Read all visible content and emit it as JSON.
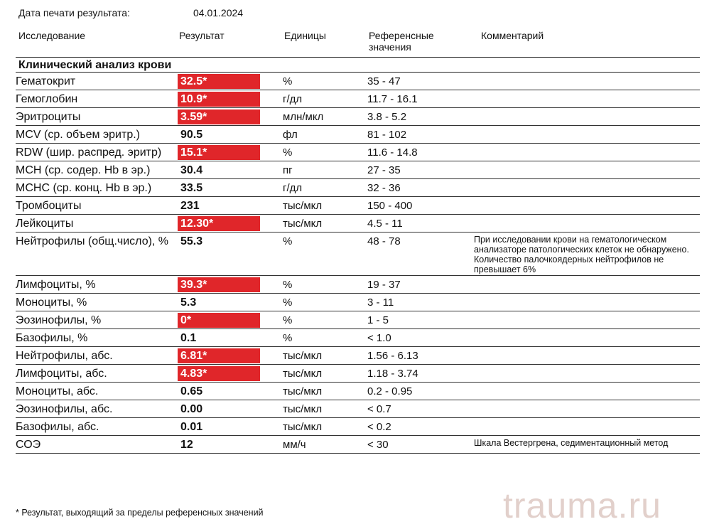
{
  "header": {
    "print_date_label": "Дата печати результата:",
    "print_date": "04.01.2024"
  },
  "columns": [
    "Исследование",
    "Результат",
    "Единицы",
    "Референсные значения",
    "Комментарий"
  ],
  "section_title": "Клинический анализ крови",
  "rows": [
    {
      "name": "Гематокрит",
      "result": "32.5*",
      "flagged": true,
      "units": "%",
      "reference": "35 - 47"
    },
    {
      "name": "Гемоглобин",
      "result": "10.9*",
      "flagged": true,
      "units": "г/дл",
      "reference": "11.7 - 16.1"
    },
    {
      "name": "Эритроциты",
      "result": "3.59*",
      "flagged": true,
      "units": "млн/мкл",
      "reference": "3.8 - 5.2"
    },
    {
      "name": "MCV (ср. объем эритр.)",
      "result": "90.5",
      "flagged": false,
      "units": "фл",
      "reference": "81 - 102"
    },
    {
      "name": "RDW (шир. распред. эритр)",
      "result": "15.1*",
      "flagged": true,
      "units": "%",
      "reference": "11.6 - 14.8"
    },
    {
      "name": "MCH (ср. содер. Hb в эр.)",
      "result": "30.4",
      "flagged": false,
      "units": "пг",
      "reference": "27 - 35"
    },
    {
      "name": "MCHC (ср. конц. Hb в эр.)",
      "result": "33.5",
      "flagged": false,
      "units": "г/дл",
      "reference": "32 - 36"
    },
    {
      "name": "Тромбоциты",
      "result": "231",
      "flagged": false,
      "units": "тыс/мкл",
      "reference": "150 - 400"
    },
    {
      "name": "Лейкоциты",
      "result": "12.30*",
      "flagged": true,
      "units": "тыс/мкл",
      "reference": "4.5 - 11"
    },
    {
      "name": "Нейтрофилы (общ.число), %",
      "result": "55.3",
      "flagged": false,
      "units": "%",
      "reference": "48 - 78",
      "comment": "При исследовании крови на гематологическом анализаторе патологических клеток не обнаружено. Количество палочкоядерных нейтрофилов не превышает 6%"
    },
    {
      "name": "Лимфоциты, %",
      "result": "39.3*",
      "flagged": true,
      "units": "%",
      "reference": "19 - 37"
    },
    {
      "name": "Моноциты, %",
      "result": "5.3",
      "flagged": false,
      "units": "%",
      "reference": "3 - 11"
    },
    {
      "name": "Эозинофилы, %",
      "result": "0*",
      "flagged": true,
      "units": "%",
      "reference": "1 - 5"
    },
    {
      "name": "Базофилы, %",
      "result": "0.1",
      "flagged": false,
      "units": "%",
      "reference": "< 1.0"
    },
    {
      "name": "Нейтрофилы, абс.",
      "result": "6.81*",
      "flagged": true,
      "units": "тыс/мкл",
      "reference": "1.56 - 6.13"
    },
    {
      "name": "Лимфоциты, абс.",
      "result": "4.83*",
      "flagged": true,
      "units": "тыс/мкл",
      "reference": "1.18 - 3.74"
    },
    {
      "name": "Моноциты, абс.",
      "result": "0.65",
      "flagged": false,
      "units": "тыс/мкл",
      "reference": "0.2 - 0.95"
    },
    {
      "name": "Эозинофилы, абс.",
      "result": "0.00",
      "flagged": false,
      "units": "тыс/мкл",
      "reference": "< 0.7"
    },
    {
      "name": "Базофилы, абс.",
      "result": "0.01",
      "flagged": false,
      "units": "тыс/мкл",
      "reference": "< 0.2"
    },
    {
      "name": "СОЭ",
      "result": "12",
      "flagged": false,
      "units": "мм/ч",
      "reference": "< 30",
      "comment": "Шкала Вестергрена, седиментационный метод"
    }
  ],
  "footnote": "* Результат, выходящий за пределы референсных значений",
  "watermark": "trauma.ru"
}
